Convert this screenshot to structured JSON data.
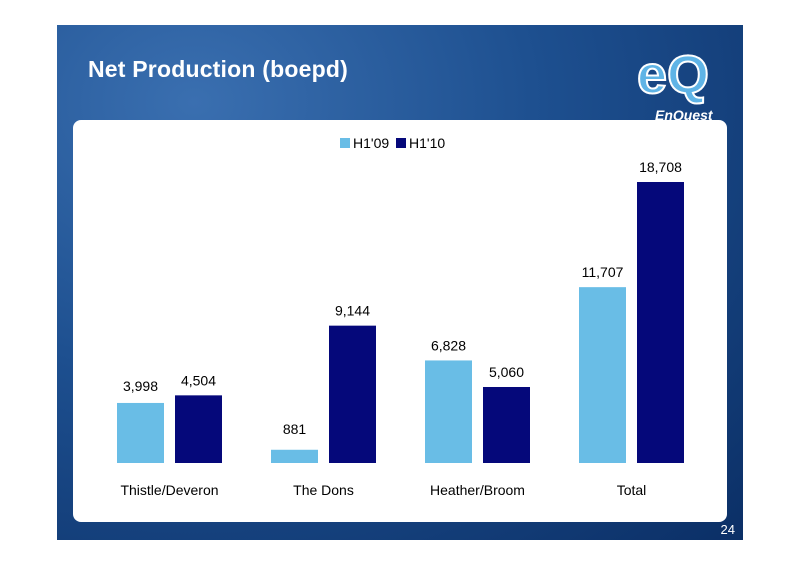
{
  "slide": {
    "title": "Net Production (boepd)",
    "page_number": "24",
    "logo_text": "EnQuest",
    "logo_mark": "eQ"
  },
  "colors": {
    "background_dark": "#0b2f66",
    "background_light": "#3a6fb0",
    "h1_09": "#69bde6",
    "h1_10": "#05087a"
  },
  "chart_data": {
    "type": "bar",
    "title": "",
    "xlabel": "",
    "ylabel": "",
    "categories": [
      "Thistle/Deveron",
      "The Dons",
      "Heather/Broom",
      "Total"
    ],
    "series": [
      {
        "name": "H1'09",
        "values": [
          3998,
          881,
          6828,
          11707
        ],
        "labels": [
          "3,998",
          "881",
          "6,828",
          "11,707"
        ]
      },
      {
        "name": "H1'10",
        "values": [
          4504,
          9144,
          5060,
          18708
        ],
        "labels": [
          "4,504",
          "9,144",
          "5,060",
          "18,708"
        ]
      }
    ],
    "ylim": [
      0,
      18708
    ],
    "grid": false,
    "legend_position": "top-center"
  }
}
